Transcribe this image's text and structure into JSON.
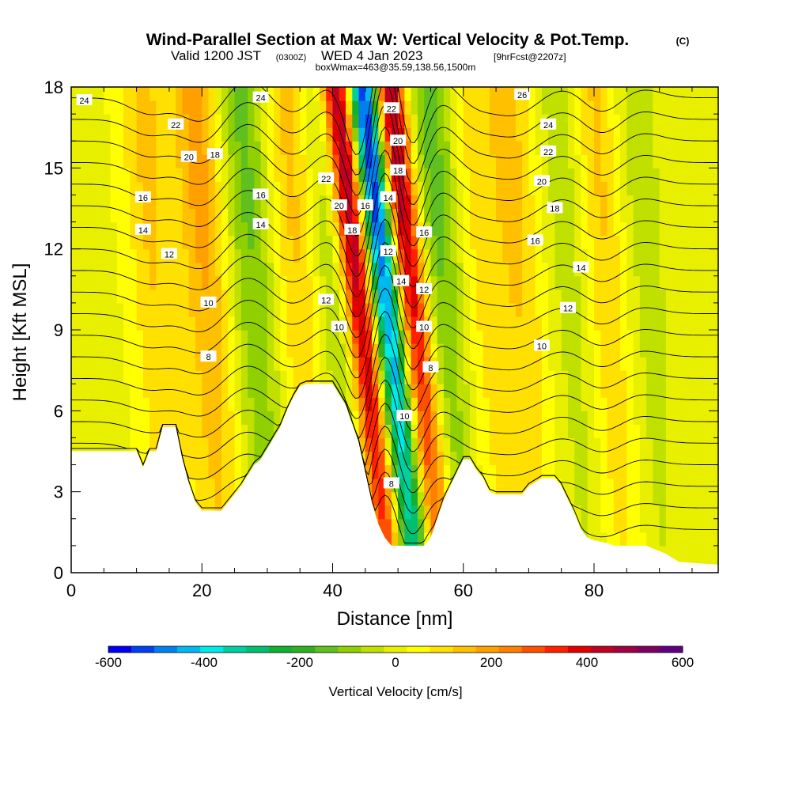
{
  "title": {
    "main": "Wind-Parallel Section at Max W: Vertical Velocity & Pot.Temp.",
    "copyright": "(C)",
    "valid_prefix": "Valid 1200 JST",
    "valid_utc": "(0300Z)",
    "valid_date": "WED 4 Jan 2023",
    "forecast": "[9hrFcst@2207z]",
    "box": "boxWmax=463@35.59,138.56,1500m"
  },
  "chart_data": {
    "type": "heatmap",
    "xlabel": "Distance [nm]",
    "ylabel": "Height [Kft MSL]",
    "xlim": [
      0,
      99
    ],
    "ylim": [
      0,
      18
    ],
    "x_ticks": [
      0,
      20,
      40,
      60,
      80
    ],
    "y_ticks": [
      0,
      3,
      6,
      9,
      12,
      15,
      18
    ],
    "colorbar": {
      "label": "Vertical Velocity [cm/s]",
      "ticks": [
        -600,
        -400,
        -200,
        0,
        200,
        400,
        600
      ],
      "colors": [
        "#0000f0",
        "#0040f0",
        "#0080f0",
        "#00b8f0",
        "#00e8e8",
        "#00d0a0",
        "#00c070",
        "#10b030",
        "#30b020",
        "#60c020",
        "#90d000",
        "#c0e000",
        "#e8f000",
        "#ffff00",
        "#ffe000",
        "#ffc000",
        "#ffa000",
        "#ff8000",
        "#ff5000",
        "#ff2000",
        "#e00000",
        "#c00020",
        "#a00040",
        "#800060",
        "#600080"
      ]
    },
    "terrain_kft": [
      [
        0,
        4.5
      ],
      [
        10,
        4.5
      ],
      [
        11,
        3.9
      ],
      [
        12,
        4.5
      ],
      [
        13,
        4.5
      ],
      [
        14,
        5.4
      ],
      [
        16,
        5.4
      ],
      [
        17,
        4.2
      ],
      [
        18,
        3.3
      ],
      [
        19,
        2.6
      ],
      [
        20,
        2.3
      ],
      [
        23,
        2.3
      ],
      [
        24,
        2.6
      ],
      [
        25,
        2.9
      ],
      [
        26,
        3.2
      ],
      [
        27,
        3.6
      ],
      [
        28,
        4.0
      ],
      [
        29,
        4.2
      ],
      [
        30,
        4.6
      ],
      [
        31,
        5.0
      ],
      [
        32,
        5.4
      ],
      [
        33,
        6.0
      ],
      [
        34,
        6.5
      ],
      [
        35,
        6.9
      ],
      [
        36,
        7.0
      ],
      [
        40,
        7.0
      ],
      [
        41,
        6.6
      ],
      [
        42,
        6.2
      ],
      [
        43,
        5.5
      ],
      [
        44,
        4.8
      ],
      [
        45,
        3.7
      ],
      [
        46,
        2.6
      ],
      [
        47,
        1.8
      ],
      [
        48,
        1.3
      ],
      [
        49,
        1.0
      ],
      [
        54,
        1.0
      ],
      [
        55,
        1.3
      ],
      [
        56,
        2.0
      ],
      [
        57,
        2.7
      ],
      [
        58,
        3.2
      ],
      [
        59,
        3.7
      ],
      [
        60,
        4.2
      ],
      [
        61,
        4.2
      ],
      [
        62,
        3.8
      ],
      [
        63,
        3.5
      ],
      [
        64,
        3.0
      ],
      [
        65,
        2.9
      ],
      [
        69,
        2.9
      ],
      [
        70,
        3.2
      ],
      [
        72,
        3.5
      ],
      [
        74,
        3.5
      ],
      [
        75,
        3.2
      ],
      [
        76,
        2.7
      ],
      [
        77,
        2.2
      ],
      [
        78,
        1.6
      ],
      [
        79,
        1.3
      ],
      [
        80,
        1.2
      ],
      [
        82,
        1.1
      ],
      [
        83,
        1.0
      ],
      [
        88,
        1.0
      ],
      [
        90,
        0.8
      ],
      [
        91,
        0.7
      ],
      [
        93,
        0.4
      ],
      [
        99,
        0.3
      ]
    ],
    "wave_bands": [
      {
        "x": 22,
        "w": 180
      },
      {
        "x": 14,
        "w": 120
      },
      {
        "x": 29,
        "w": -150
      },
      {
        "x": 36,
        "w": 130
      },
      {
        "x": 42,
        "w": -120
      },
      {
        "x": 46,
        "w": 550
      },
      {
        "x": 50,
        "w": -600
      },
      {
        "x": 54,
        "w": 480
      },
      {
        "x": 58,
        "w": -160
      },
      {
        "x": 64,
        "w": 90
      },
      {
        "x": 70,
        "w": 120
      },
      {
        "x": 78,
        "w": -80
      },
      {
        "x": 83,
        "w": 130
      },
      {
        "x": 89,
        "w": -70
      }
    ],
    "contour_labels": [
      {
        "text": "24",
        "x": 2,
        "y": 17.5
      },
      {
        "text": "22",
        "x": 16,
        "y": 16.6
      },
      {
        "text": "20",
        "x": 18,
        "y": 15.4
      },
      {
        "text": "18",
        "x": 22,
        "y": 15.5
      },
      {
        "text": "24",
        "x": 29,
        "y": 17.6
      },
      {
        "text": "16",
        "x": 11,
        "y": 13.9
      },
      {
        "text": "16",
        "x": 29,
        "y": 14.0
      },
      {
        "text": "14",
        "x": 11,
        "y": 12.7
      },
      {
        "text": "14",
        "x": 29,
        "y": 12.9
      },
      {
        "text": "12",
        "x": 15,
        "y": 11.8
      },
      {
        "text": "10",
        "x": 21,
        "y": 10.0
      },
      {
        "text": "8",
        "x": 21,
        "y": 8.0
      },
      {
        "text": "22",
        "x": 39,
        "y": 14.6
      },
      {
        "text": "20",
        "x": 41,
        "y": 13.6
      },
      {
        "text": "16",
        "x": 45,
        "y": 13.6
      },
      {
        "text": "18",
        "x": 43,
        "y": 12.7
      },
      {
        "text": "12",
        "x": 39,
        "y": 10.1
      },
      {
        "text": "10",
        "x": 41,
        "y": 9.1
      },
      {
        "text": "22",
        "x": 49,
        "y": 17.2
      },
      {
        "text": "20",
        "x": 50,
        "y": 16.0
      },
      {
        "text": "18",
        "x": 50,
        "y": 14.9
      },
      {
        "text": "14",
        "x": 48.5,
        "y": 13.9
      },
      {
        "text": "12",
        "x": 48.5,
        "y": 11.9
      },
      {
        "text": "14",
        "x": 50.5,
        "y": 10.8
      },
      {
        "text": "16",
        "x": 54,
        "y": 12.6
      },
      {
        "text": "12",
        "x": 54,
        "y": 10.5
      },
      {
        "text": "10",
        "x": 54,
        "y": 9.1
      },
      {
        "text": "8",
        "x": 55,
        "y": 7.6
      },
      {
        "text": "10",
        "x": 51,
        "y": 5.8
      },
      {
        "text": "8",
        "x": 49,
        "y": 3.3
      },
      {
        "text": "26",
        "x": 69,
        "y": 17.7
      },
      {
        "text": "24",
        "x": 73,
        "y": 16.6
      },
      {
        "text": "22",
        "x": 73,
        "y": 15.6
      },
      {
        "text": "20",
        "x": 72,
        "y": 14.5
      },
      {
        "text": "18",
        "x": 74,
        "y": 13.5
      },
      {
        "text": "16",
        "x": 71,
        "y": 12.3
      },
      {
        "text": "14",
        "x": 78,
        "y": 11.3
      },
      {
        "text": "12",
        "x": 76,
        "y": 9.8
      },
      {
        "text": "10",
        "x": 72,
        "y": 8.4
      }
    ],
    "theta_levels": [
      8,
      9,
      10,
      11,
      12,
      13,
      14,
      15,
      16,
      17,
      18,
      19,
      20,
      21,
      22,
      23,
      24,
      25,
      26,
      27,
      28
    ]
  }
}
